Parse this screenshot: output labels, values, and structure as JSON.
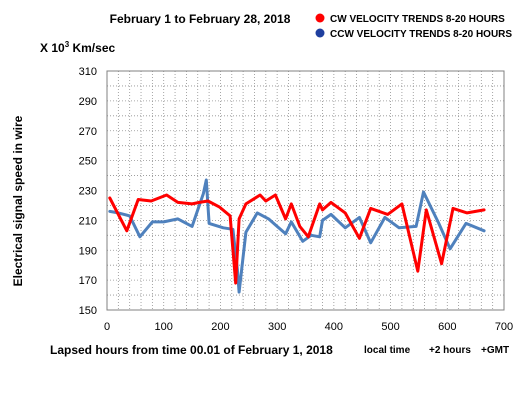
{
  "chart_data": {
    "type": "line",
    "title": "February 1 to February 28, 2018",
    "units_label_prefix": "X 10",
    "units_label_exp": "3",
    "units_label_suffix": " Km/sec",
    "ylabel": "Electrical signal speed in wire",
    "xlabel": "Lapsed hours from time 00.01 of February 1, 2018",
    "xlabel_note_1": "local time",
    "xlabel_note_2": "+2 hours",
    "xlabel_note_3": "+GMT",
    "xlim": [
      0,
      700
    ],
    "ylim": [
      150,
      310
    ],
    "xticks": [
      0,
      100,
      200,
      300,
      400,
      500,
      600,
      700
    ],
    "yticks": [
      150,
      170,
      190,
      210,
      230,
      250,
      270,
      290,
      310
    ],
    "grid": true,
    "legend_position": "top-right",
    "series": [
      {
        "name": "CW VELOCITY TRENDS 8-20 HOURS",
        "color": "#ff0000",
        "x": [
          5,
          35,
          55,
          78,
          105,
          125,
          150,
          163,
          178,
          198,
          217,
          227,
          233,
          245,
          270,
          280,
          297,
          315,
          325,
          340,
          355,
          375,
          380,
          395,
          420,
          445,
          465,
          480,
          495,
          520,
          548,
          563,
          590,
          610,
          635,
          665
        ],
        "y": [
          225,
          203,
          224,
          223,
          227,
          222,
          221,
          222,
          223,
          219,
          213,
          168,
          211,
          221,
          227,
          223,
          227,
          211,
          221,
          206,
          199,
          221,
          217,
          222,
          215,
          198,
          218,
          216,
          214,
          221,
          176,
          217,
          181,
          218,
          215,
          217
        ]
      },
      {
        "name": "CCW VELOCITY TRENDS 8-20 HOURS",
        "color": "#4f81bd",
        "x": [
          5,
          20,
          40,
          58,
          80,
          100,
          125,
          150,
          170,
          175,
          180,
          205,
          222,
          230,
          233,
          245,
          265,
          285,
          300,
          315,
          325,
          345,
          360,
          375,
          380,
          395,
          420,
          445,
          465,
          490,
          515,
          545,
          558,
          585,
          605,
          633,
          665
        ],
        "y": [
          216,
          215,
          213,
          199,
          209,
          209,
          211,
          206,
          228,
          237,
          208,
          205,
          204,
          177,
          162,
          202,
          215,
          211,
          206,
          201,
          209,
          196,
          200,
          199,
          210,
          214,
          205,
          212,
          195,
          212,
          205,
          206,
          229,
          208,
          191,
          208,
          203
        ]
      }
    ]
  }
}
